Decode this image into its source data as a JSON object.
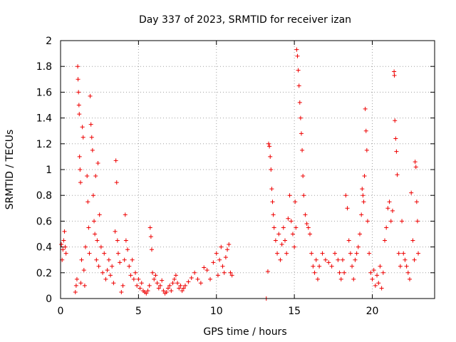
{
  "chart_data": {
    "type": "scatter",
    "title": "Day 337 of 2023, SRMTID for receiver izan",
    "xlabel": "GPS time / hours",
    "ylabel": "SRMTID / TECUs",
    "xlim": [
      0,
      24
    ],
    "ylim": [
      0,
      2
    ],
    "xticks": [
      0,
      5,
      10,
      15,
      20
    ],
    "xtick_labels": [
      "0",
      "5",
      "10",
      "15",
      "20"
    ],
    "yticks": [
      0,
      0.2,
      0.4,
      0.6,
      0.8,
      1,
      1.2,
      1.4,
      1.6,
      1.8,
      2
    ],
    "ytick_labels": [
      "0",
      "0.2",
      "0.4",
      "0.6",
      "0.8",
      "1",
      "1.2",
      "1.4",
      "1.6",
      "1.8",
      "2"
    ],
    "grid": true,
    "marker": "+",
    "color": "#ee0000",
    "series": [
      {
        "name": "SRMTID",
        "points": [
          [
            0.05,
            0.42
          ],
          [
            0.1,
            0.3
          ],
          [
            0.15,
            0.38
          ],
          [
            0.2,
            0.45
          ],
          [
            0.25,
            0.52
          ],
          [
            0.3,
            0.4
          ],
          [
            0.35,
            0.35
          ],
          [
            0.95,
            0.05
          ],
          [
            1.0,
            0.1
          ],
          [
            1.05,
            0.15
          ],
          [
            1.1,
            1.8
          ],
          [
            1.12,
            1.7
          ],
          [
            1.15,
            1.6
          ],
          [
            1.18,
            1.5
          ],
          [
            1.2,
            1.43
          ],
          [
            1.22,
            1.1
          ],
          [
            1.25,
            1.0
          ],
          [
            1.28,
            0.9
          ],
          [
            1.3,
            0.12
          ],
          [
            1.35,
            0.3
          ],
          [
            1.4,
            1.33
          ],
          [
            1.45,
            1.25
          ],
          [
            1.5,
            0.22
          ],
          [
            1.55,
            0.1
          ],
          [
            1.6,
            0.4
          ],
          [
            1.7,
            0.95
          ],
          [
            1.75,
            0.75
          ],
          [
            1.8,
            0.55
          ],
          [
            1.85,
            0.35
          ],
          [
            1.9,
            1.57
          ],
          [
            1.95,
            1.35
          ],
          [
            2.0,
            1.25
          ],
          [
            2.05,
            1.15
          ],
          [
            2.1,
            0.8
          ],
          [
            2.15,
            0.6
          ],
          [
            2.2,
            0.5
          ],
          [
            2.25,
            0.95
          ],
          [
            2.3,
            0.3
          ],
          [
            2.35,
            0.45
          ],
          [
            2.4,
            1.05
          ],
          [
            2.45,
            0.25
          ],
          [
            2.5,
            0.65
          ],
          [
            2.6,
            0.4
          ],
          [
            2.7,
            0.2
          ],
          [
            2.8,
            0.35
          ],
          [
            2.9,
            0.15
          ],
          [
            3.0,
            0.22
          ],
          [
            3.1,
            0.3
          ],
          [
            3.2,
            0.18
          ],
          [
            3.3,
            0.25
          ],
          [
            3.4,
            0.12
          ],
          [
            3.5,
            0.52
          ],
          [
            3.55,
            1.07
          ],
          [
            3.6,
            0.9
          ],
          [
            3.65,
            0.45
          ],
          [
            3.7,
            0.35
          ],
          [
            3.8,
            0.28
          ],
          [
            3.9,
            0.05
          ],
          [
            4.0,
            0.1
          ],
          [
            4.1,
            0.3
          ],
          [
            4.15,
            0.65
          ],
          [
            4.2,
            0.45
          ],
          [
            4.3,
            0.38
          ],
          [
            4.4,
            0.25
          ],
          [
            4.5,
            0.18
          ],
          [
            4.6,
            0.3
          ],
          [
            4.7,
            0.15
          ],
          [
            4.8,
            0.2
          ],
          [
            4.9,
            0.1
          ],
          [
            5.0,
            0.15
          ],
          [
            5.1,
            0.08
          ],
          [
            5.2,
            0.12
          ],
          [
            5.3,
            0.06
          ],
          [
            5.4,
            0.05
          ],
          [
            5.5,
            0.04
          ],
          [
            5.6,
            0.06
          ],
          [
            5.7,
            0.1
          ],
          [
            5.75,
            0.55
          ],
          [
            5.8,
            0.48
          ],
          [
            5.85,
            0.38
          ],
          [
            5.9,
            0.2
          ],
          [
            6.0,
            0.15
          ],
          [
            6.1,
            0.18
          ],
          [
            6.2,
            0.12
          ],
          [
            6.3,
            0.08
          ],
          [
            6.4,
            0.1
          ],
          [
            6.5,
            0.14
          ],
          [
            6.6,
            0.06
          ],
          [
            6.7,
            0.04
          ],
          [
            6.8,
            0.05
          ],
          [
            6.9,
            0.08
          ],
          [
            7.0,
            0.1
          ],
          [
            7.1,
            0.06
          ],
          [
            7.2,
            0.12
          ],
          [
            7.3,
            0.15
          ],
          [
            7.4,
            0.18
          ],
          [
            7.5,
            0.12
          ],
          [
            7.6,
            0.08
          ],
          [
            7.7,
            0.1
          ],
          [
            7.8,
            0.06
          ],
          [
            7.9,
            0.08
          ],
          [
            8.0,
            0.1
          ],
          [
            8.2,
            0.13
          ],
          [
            8.4,
            0.16
          ],
          [
            8.6,
            0.2
          ],
          [
            8.8,
            0.15
          ],
          [
            9.0,
            0.12
          ],
          [
            9.2,
            0.24
          ],
          [
            9.4,
            0.22
          ],
          [
            9.6,
            0.15
          ],
          [
            9.8,
            0.28
          ],
          [
            10.0,
            0.35
          ],
          [
            10.1,
            0.18
          ],
          [
            10.2,
            0.3
          ],
          [
            10.3,
            0.4
          ],
          [
            10.4,
            0.25
          ],
          [
            10.5,
            0.2
          ],
          [
            10.6,
            0.32
          ],
          [
            10.7,
            0.38
          ],
          [
            10.8,
            0.42
          ],
          [
            10.9,
            0.2
          ],
          [
            11.0,
            0.18
          ],
          [
            13.2,
            0.0
          ],
          [
            13.3,
            0.21
          ],
          [
            13.35,
            1.2
          ],
          [
            13.4,
            1.18
          ],
          [
            13.45,
            1.1
          ],
          [
            13.5,
            1.0
          ],
          [
            13.55,
            0.85
          ],
          [
            13.6,
            0.75
          ],
          [
            13.65,
            0.65
          ],
          [
            13.7,
            0.55
          ],
          [
            13.8,
            0.45
          ],
          [
            13.9,
            0.35
          ],
          [
            14.0,
            0.5
          ],
          [
            14.1,
            0.3
          ],
          [
            14.2,
            0.42
          ],
          [
            14.3,
            0.55
          ],
          [
            14.4,
            0.45
          ],
          [
            14.5,
            0.35
          ],
          [
            14.6,
            0.62
          ],
          [
            14.7,
            0.8
          ],
          [
            14.8,
            0.6
          ],
          [
            14.9,
            0.5
          ],
          [
            15.0,
            0.4
          ],
          [
            15.05,
            0.75
          ],
          [
            15.1,
            0.55
          ],
          [
            15.15,
            1.93
          ],
          [
            15.2,
            1.88
          ],
          [
            15.25,
            1.77
          ],
          [
            15.3,
            1.65
          ],
          [
            15.35,
            1.52
          ],
          [
            15.4,
            1.4
          ],
          [
            15.45,
            1.28
          ],
          [
            15.5,
            1.15
          ],
          [
            15.55,
            0.95
          ],
          [
            15.6,
            0.8
          ],
          [
            15.7,
            0.65
          ],
          [
            15.8,
            0.58
          ],
          [
            15.9,
            0.55
          ],
          [
            16.0,
            0.5
          ],
          [
            16.1,
            0.35
          ],
          [
            16.2,
            0.25
          ],
          [
            16.3,
            0.2
          ],
          [
            16.4,
            0.3
          ],
          [
            16.5,
            0.15
          ],
          [
            16.6,
            0.25
          ],
          [
            16.8,
            0.35
          ],
          [
            17.0,
            0.3
          ],
          [
            17.2,
            0.28
          ],
          [
            17.4,
            0.25
          ],
          [
            17.6,
            0.35
          ],
          [
            17.8,
            0.3
          ],
          [
            17.9,
            0.2
          ],
          [
            18.0,
            0.15
          ],
          [
            18.1,
            0.3
          ],
          [
            18.2,
            0.2
          ],
          [
            18.3,
            0.8
          ],
          [
            18.4,
            0.7
          ],
          [
            18.5,
            0.45
          ],
          [
            18.6,
            0.35
          ],
          [
            18.7,
            0.25
          ],
          [
            18.8,
            0.15
          ],
          [
            18.9,
            0.3
          ],
          [
            19.0,
            0.35
          ],
          [
            19.1,
            0.4
          ],
          [
            19.2,
            0.5
          ],
          [
            19.3,
            0.65
          ],
          [
            19.35,
            0.85
          ],
          [
            19.4,
            0.8
          ],
          [
            19.45,
            0.75
          ],
          [
            19.5,
            0.95
          ],
          [
            19.55,
            1.47
          ],
          [
            19.6,
            1.3
          ],
          [
            19.65,
            1.15
          ],
          [
            19.7,
            0.6
          ],
          [
            19.8,
            0.35
          ],
          [
            19.9,
            0.2
          ],
          [
            20.0,
            0.15
          ],
          [
            20.1,
            0.22
          ],
          [
            20.2,
            0.1
          ],
          [
            20.3,
            0.18
          ],
          [
            20.4,
            0.12
          ],
          [
            20.5,
            0.25
          ],
          [
            20.6,
            0.08
          ],
          [
            20.7,
            0.2
          ],
          [
            20.8,
            0.45
          ],
          [
            20.9,
            0.55
          ],
          [
            21.0,
            0.7
          ],
          [
            21.1,
            0.75
          ],
          [
            21.2,
            0.6
          ],
          [
            21.3,
            0.68
          ],
          [
            21.4,
            1.76
          ],
          [
            21.42,
            1.73
          ],
          [
            21.45,
            1.38
          ],
          [
            21.5,
            1.24
          ],
          [
            21.55,
            1.14
          ],
          [
            21.6,
            0.96
          ],
          [
            21.7,
            0.35
          ],
          [
            21.8,
            0.25
          ],
          [
            21.9,
            0.6
          ],
          [
            22.0,
            0.35
          ],
          [
            22.1,
            0.3
          ],
          [
            22.2,
            0.25
          ],
          [
            22.3,
            0.2
          ],
          [
            22.4,
            0.15
          ],
          [
            22.5,
            0.82
          ],
          [
            22.6,
            0.45
          ],
          [
            22.7,
            0.3
          ],
          [
            22.75,
            1.06
          ],
          [
            22.8,
            1.02
          ],
          [
            22.85,
            0.75
          ],
          [
            22.9,
            0.6
          ],
          [
            22.95,
            0.35
          ]
        ]
      }
    ]
  }
}
